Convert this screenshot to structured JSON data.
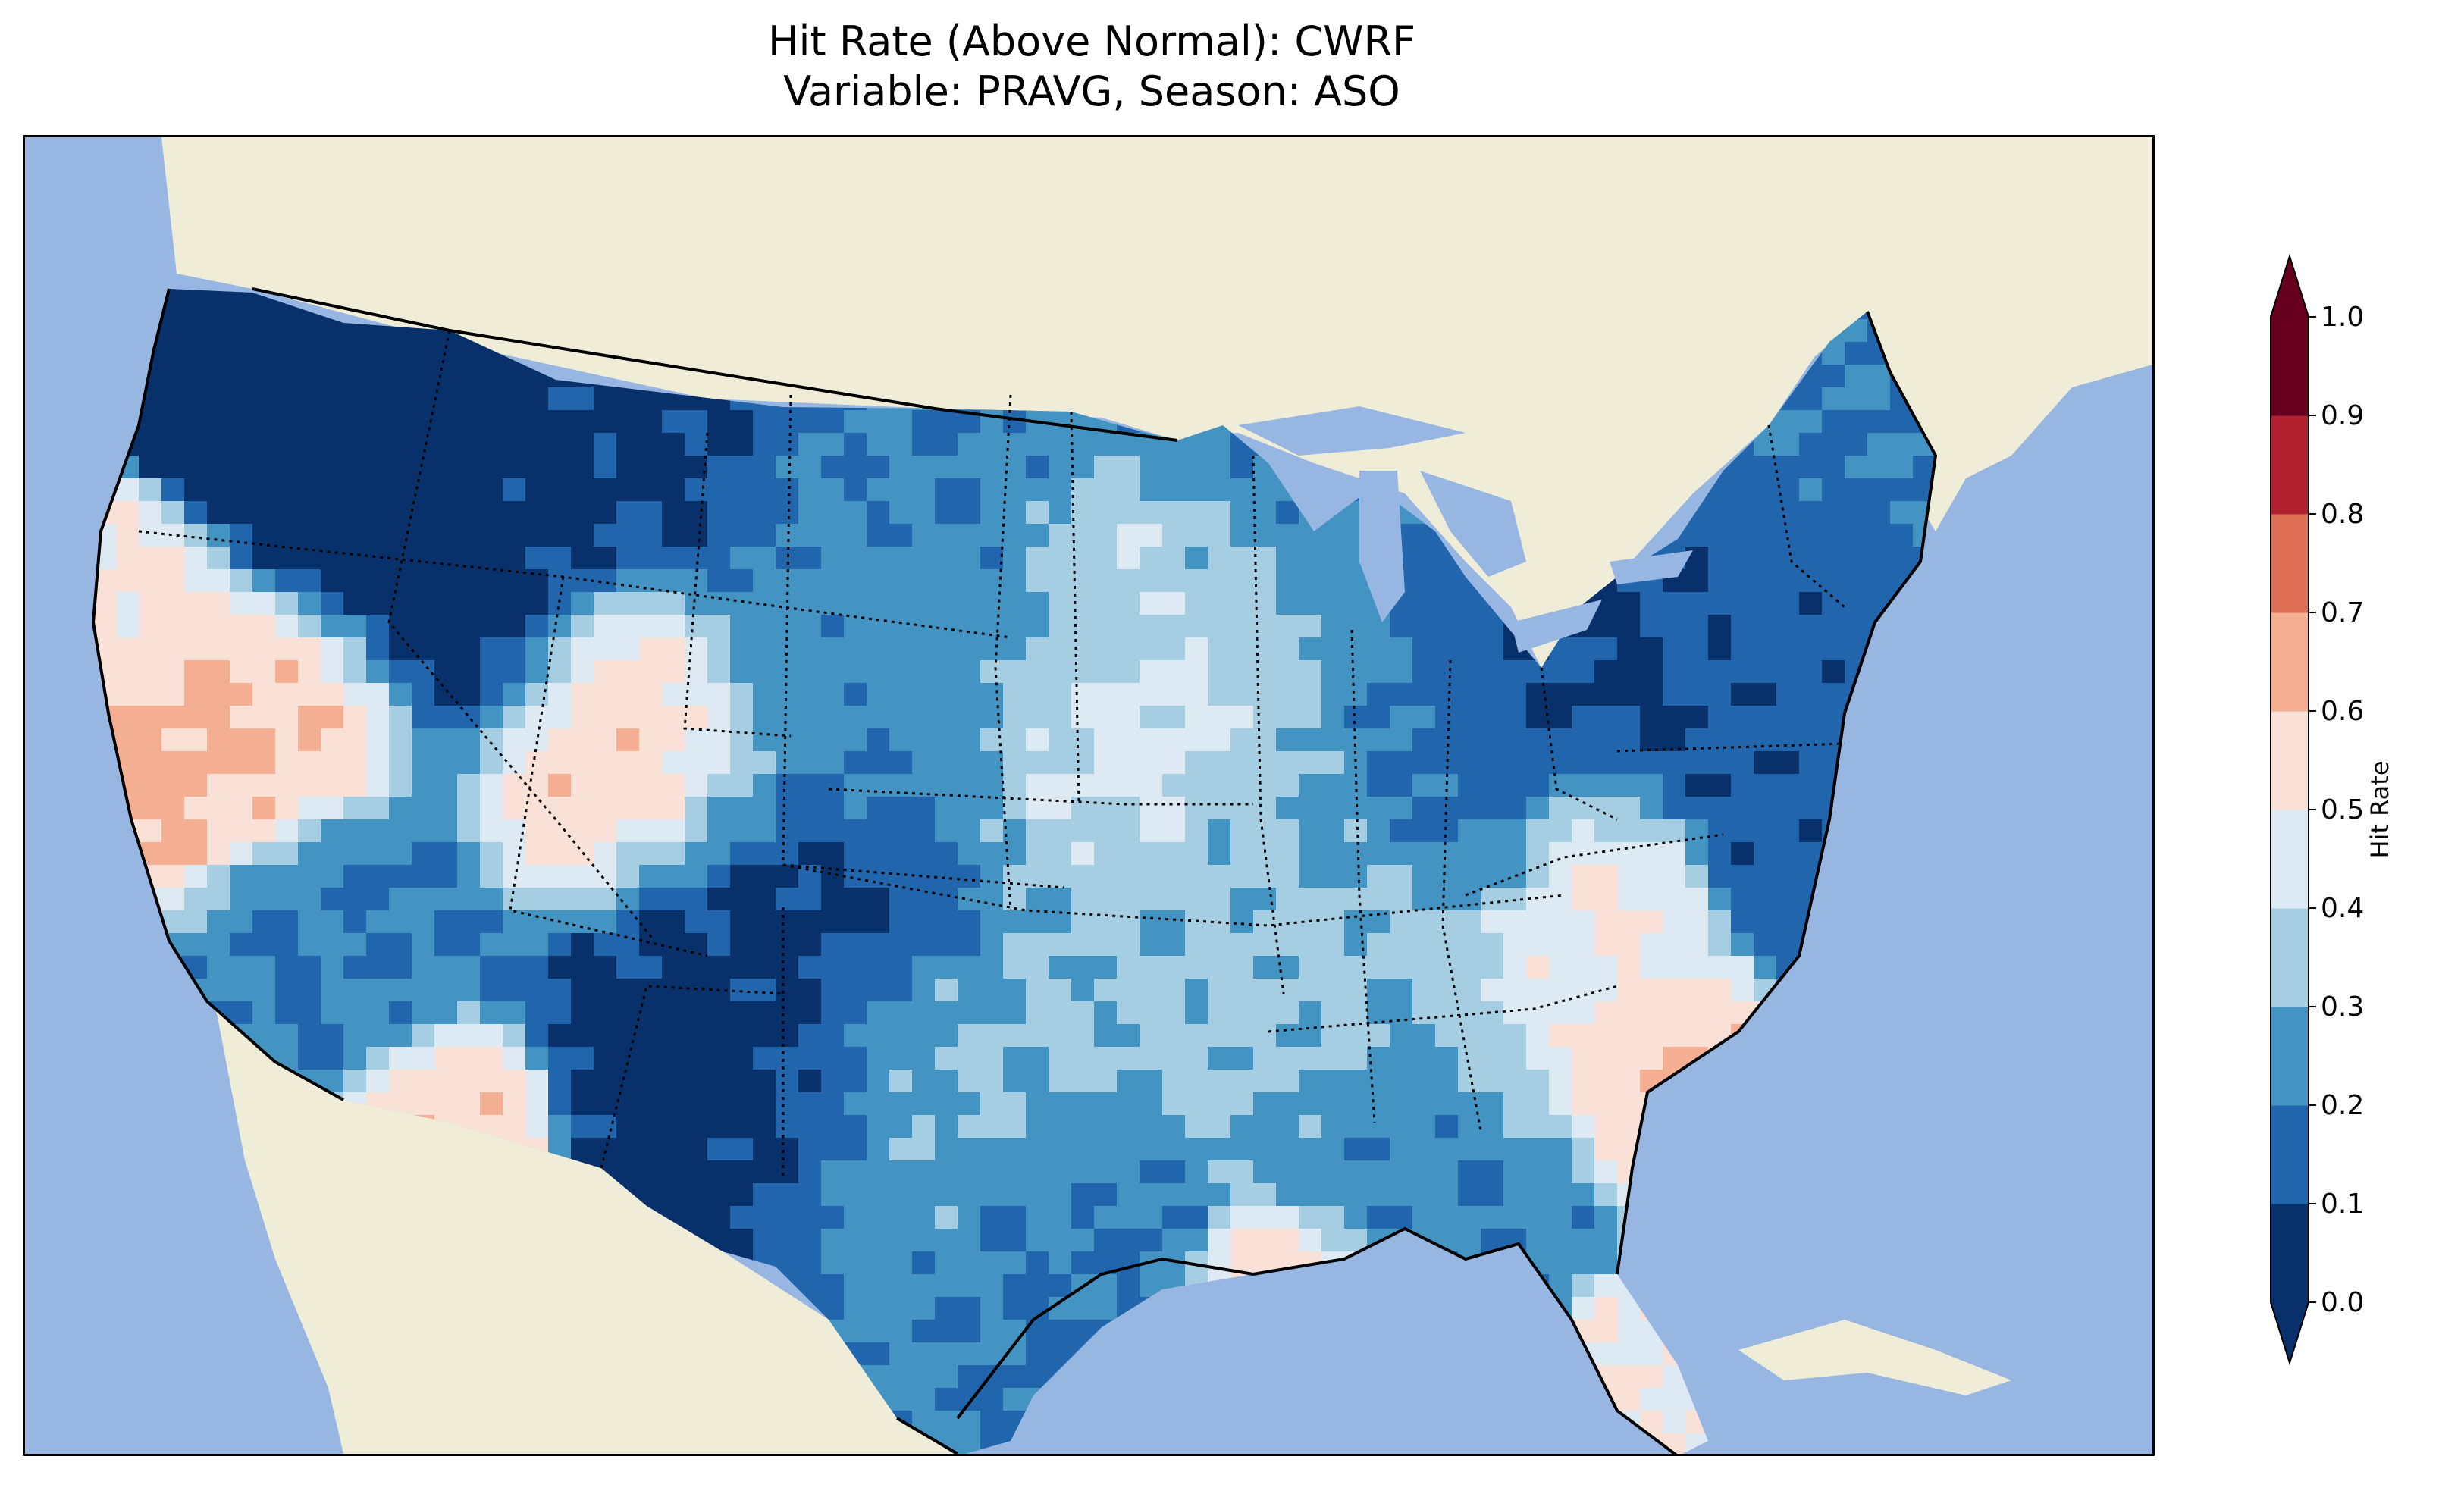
{
  "title": {
    "line1": "Hit Rate (Above Normal): CWRF",
    "line2": "Variable: PRAVG, Season: ASO"
  },
  "colorbar": {
    "label": "Hit Rate",
    "ticks": [
      "0.0",
      "0.1",
      "0.2",
      "0.3",
      "0.4",
      "0.5",
      "0.6",
      "0.7",
      "0.8",
      "0.9",
      "1.0"
    ],
    "bins": [
      {
        "min": 0.0,
        "max": 0.1,
        "color": "#08306b"
      },
      {
        "min": 0.1,
        "max": 0.2,
        "color": "#2166ac"
      },
      {
        "min": 0.2,
        "max": 0.3,
        "color": "#4393c3"
      },
      {
        "min": 0.3,
        "max": 0.4,
        "color": "#a6cee3"
      },
      {
        "min": 0.4,
        "max": 0.5,
        "color": "#dde9f3"
      },
      {
        "min": 0.5,
        "max": 0.6,
        "color": "#f9e1d7"
      },
      {
        "min": 0.6,
        "max": 0.7,
        "color": "#f4ae91"
      },
      {
        "min": 0.7,
        "max": 0.8,
        "color": "#dc6f55"
      },
      {
        "min": 0.8,
        "max": 0.9,
        "color": "#b2212f"
      },
      {
        "min": 0.9,
        "max": 1.0,
        "color": "#67001f"
      }
    ],
    "extend": "both"
  },
  "map": {
    "ocean_color": "#97b6e1",
    "land_color": "#efedd8",
    "region": "Contiguous United States"
  }
}
